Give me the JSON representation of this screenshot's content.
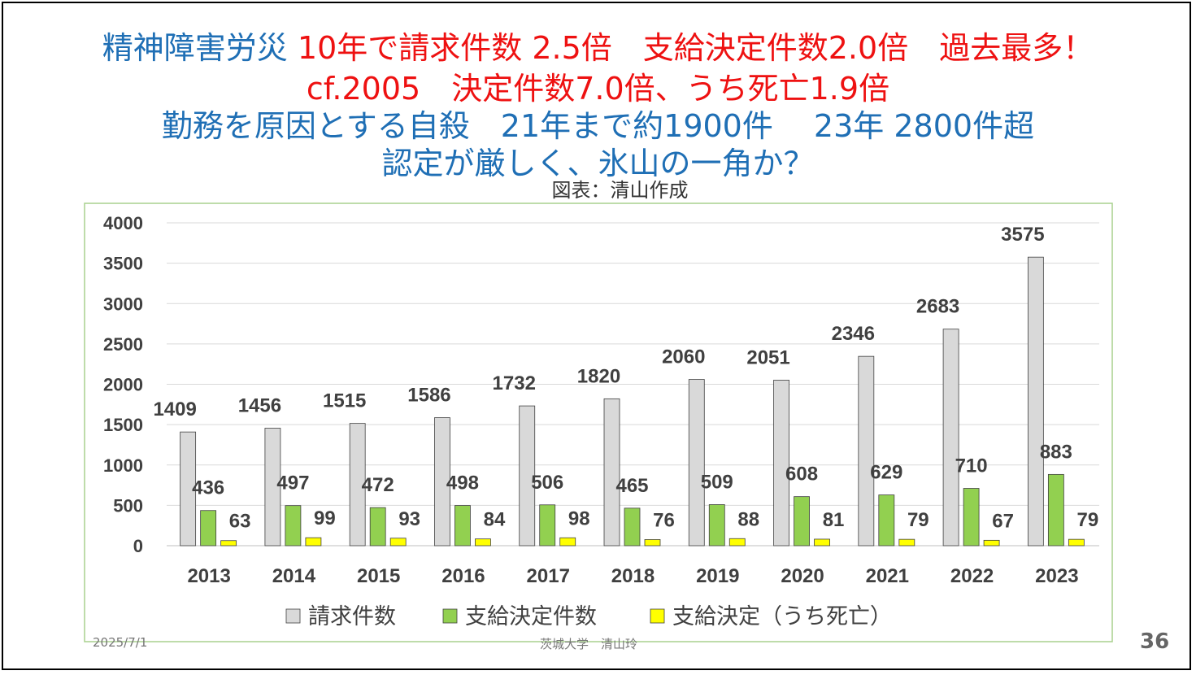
{
  "title": {
    "line1_blue": "精神障害労災",
    "line1_red": " 10年で請求件数 2.5倍　支給決定件数2.0倍　過去最多！",
    "line2": "cf.2005　決定件数7.0倍、うち死亡1.9倍",
    "line3": "勤務を原因とする自殺　21年まで約1900件　 23年 2800件超",
    "line4": "認定が厳しく、氷山の一角か？"
  },
  "credit": "図表：清山作成",
  "footer": {
    "date": "2025/7/1",
    "author": "茨城大学　清山玲",
    "page": "36"
  },
  "chart_data": {
    "type": "bar",
    "categories": [
      "2013",
      "2014",
      "2015",
      "2016",
      "2017",
      "2018",
      "2019",
      "2020",
      "2021",
      "2022",
      "2023"
    ],
    "series": [
      {
        "name": "請求件数",
        "color": "#d9d9d9",
        "values": [
          1409,
          1456,
          1515,
          1586,
          1732,
          1820,
          2060,
          2051,
          2346,
          2683,
          3575
        ]
      },
      {
        "name": "支給決定件数",
        "color": "#92d050",
        "values": [
          436,
          497,
          472,
          498,
          506,
          465,
          509,
          608,
          629,
          710,
          883
        ]
      },
      {
        "name": "支給決定（うち死亡）",
        "color": "#ffff00",
        "values": [
          63,
          99,
          93,
          84,
          98,
          76,
          88,
          81,
          79,
          67,
          79
        ]
      }
    ],
    "ylim": [
      0,
      4000
    ],
    "yticks": [
      "0",
      "500",
      "1000",
      "1500",
      "2000",
      "2500",
      "3000",
      "3500",
      "4000"
    ],
    "grid": true,
    "legend": "bottom"
  }
}
